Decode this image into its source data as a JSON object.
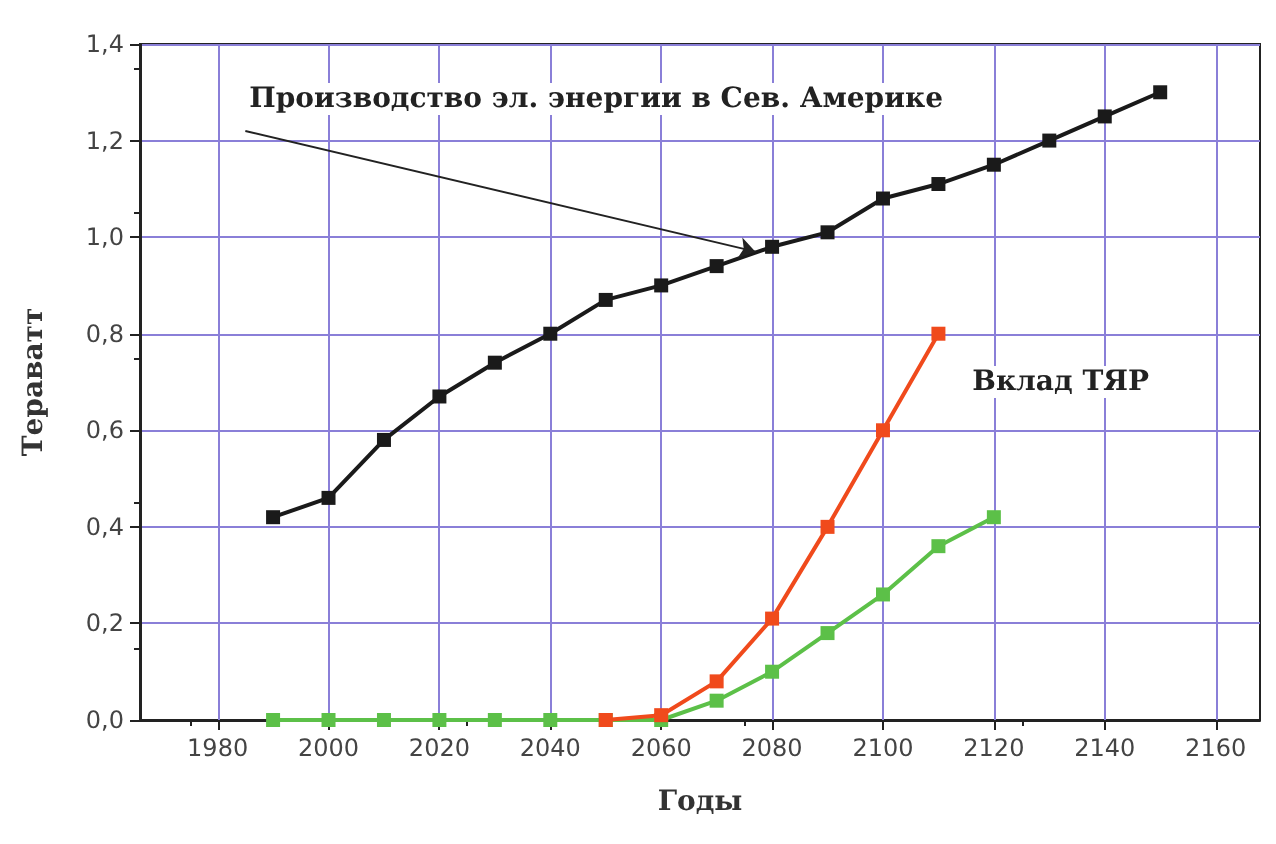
{
  "chart_data": {
    "type": "line",
    "xlabel": "Годы",
    "ylabel": "Тераватт",
    "xlim": [
      1966,
      2168
    ],
    "xticks": [
      1980,
      2000,
      2020,
      2040,
      2060,
      2080,
      2100,
      2120,
      2140,
      2160
    ],
    "ylim": [
      0,
      1.4
    ],
    "yticks": [
      {
        "value": 0,
        "label": "0,0"
      },
      {
        "value": 0.2,
        "label": "0,2"
      },
      {
        "value": 0.4,
        "label": "0,4"
      },
      {
        "value": 0.6,
        "label": "0,6"
      },
      {
        "value": 0.8,
        "label": "0,8"
      },
      {
        "value": 1,
        "label": "1,0"
      },
      {
        "value": 1.2,
        "label": "1,2"
      },
      {
        "value": 1.4,
        "label": "1,4"
      }
    ],
    "grid": true,
    "marker": "square",
    "series": [
      {
        "color": "#1a1a1a",
        "x": [
          1990,
          2000,
          2010,
          2020,
          2030,
          2040,
          2050,
          2060,
          2070,
          2080,
          2090,
          2100,
          2110,
          2120,
          2130,
          2140,
          2150
        ],
        "values": [
          0.42,
          0.46,
          0.58,
          0.67,
          0.74,
          0.8,
          0.87,
          0.9,
          0.94,
          0.98,
          1.01,
          1.08,
          1.11,
          1.15,
          1.2,
          1.25,
          1.3
        ]
      },
      {
        "color": "#f04a1c",
        "x": [
          2050,
          2060,
          2070,
          2080,
          2090,
          2100,
          2110
        ],
        "values": [
          0,
          0.01,
          0.08,
          0.21,
          0.4,
          0.6,
          0.8
        ]
      },
      {
        "color": "#5cc048",
        "x": [
          1990,
          2000,
          2010,
          2020,
          2030,
          2040,
          2050,
          2060,
          2070,
          2080,
          2090,
          2100,
          2110,
          2120
        ],
        "values": [
          0,
          0,
          0,
          0,
          0,
          0,
          0,
          0,
          0.04,
          0.1,
          0.18,
          0.26,
          0.36,
          0.42
        ]
      }
    ],
    "annotations": [
      {
        "text": "Производство эл. энергии в Сев. Америке",
        "x": 2077,
        "y": 0.97
      },
      "Вклад ТЯР"
    ]
  }
}
